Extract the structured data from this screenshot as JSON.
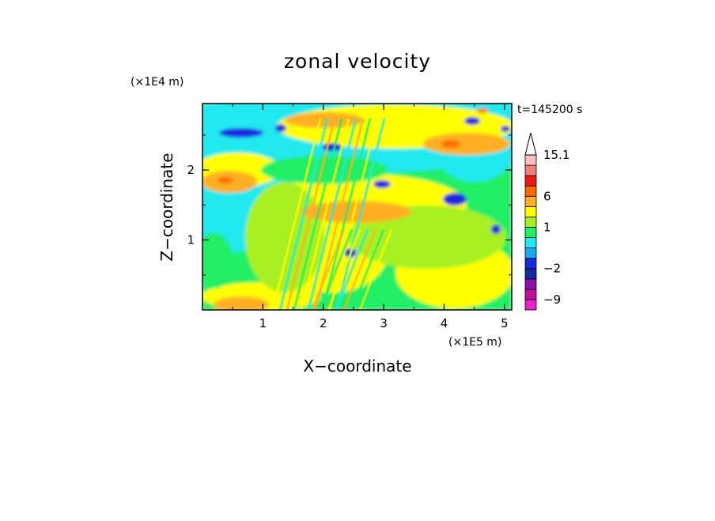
{
  "chart_data": {
    "type": "heatmap",
    "title": "zonal velocity",
    "xlabel": "X−coordinate",
    "ylabel": "Z−coordinate",
    "x_unit": "(×1E5 m)",
    "y_unit": "(×1E4 m)",
    "time_label": "t=145200 s",
    "xlim": [
      0,
      5.12
    ],
    "ylim": [
      0,
      2.95
    ],
    "x_ticks": [
      1,
      2,
      3,
      4,
      5
    ],
    "y_ticks": [
      1,
      2
    ],
    "x_tick_labels": [
      "1",
      "2",
      "3",
      "4",
      "5"
    ],
    "y_tick_labels": [
      "1",
      "2"
    ],
    "colorbar": {
      "levels": [
        -12,
        -9,
        -6,
        -4,
        -2,
        -1,
        0,
        0.5,
        1,
        2,
        4,
        6,
        9,
        12,
        15.1
      ],
      "colors": [
        "#ee22cc",
        "#c0109a",
        "#8e10a8",
        "#0e2e9e",
        "#1a28e0",
        "#1aa8f0",
        "#22e8f0",
        "#22ee66",
        "#a8f022",
        "#ffff00",
        "#ffb020",
        "#ff6a00",
        "#ee1818",
        "#f47f7f",
        "#f8c0c0"
      ],
      "extend": "max",
      "labels": [
        "15.1",
        "6",
        "1",
        "−2",
        "−9"
      ],
      "label_values": [
        15.1,
        6,
        1,
        -2,
        -9
      ]
    },
    "colors": {
      "frame": "#000000"
    }
  }
}
